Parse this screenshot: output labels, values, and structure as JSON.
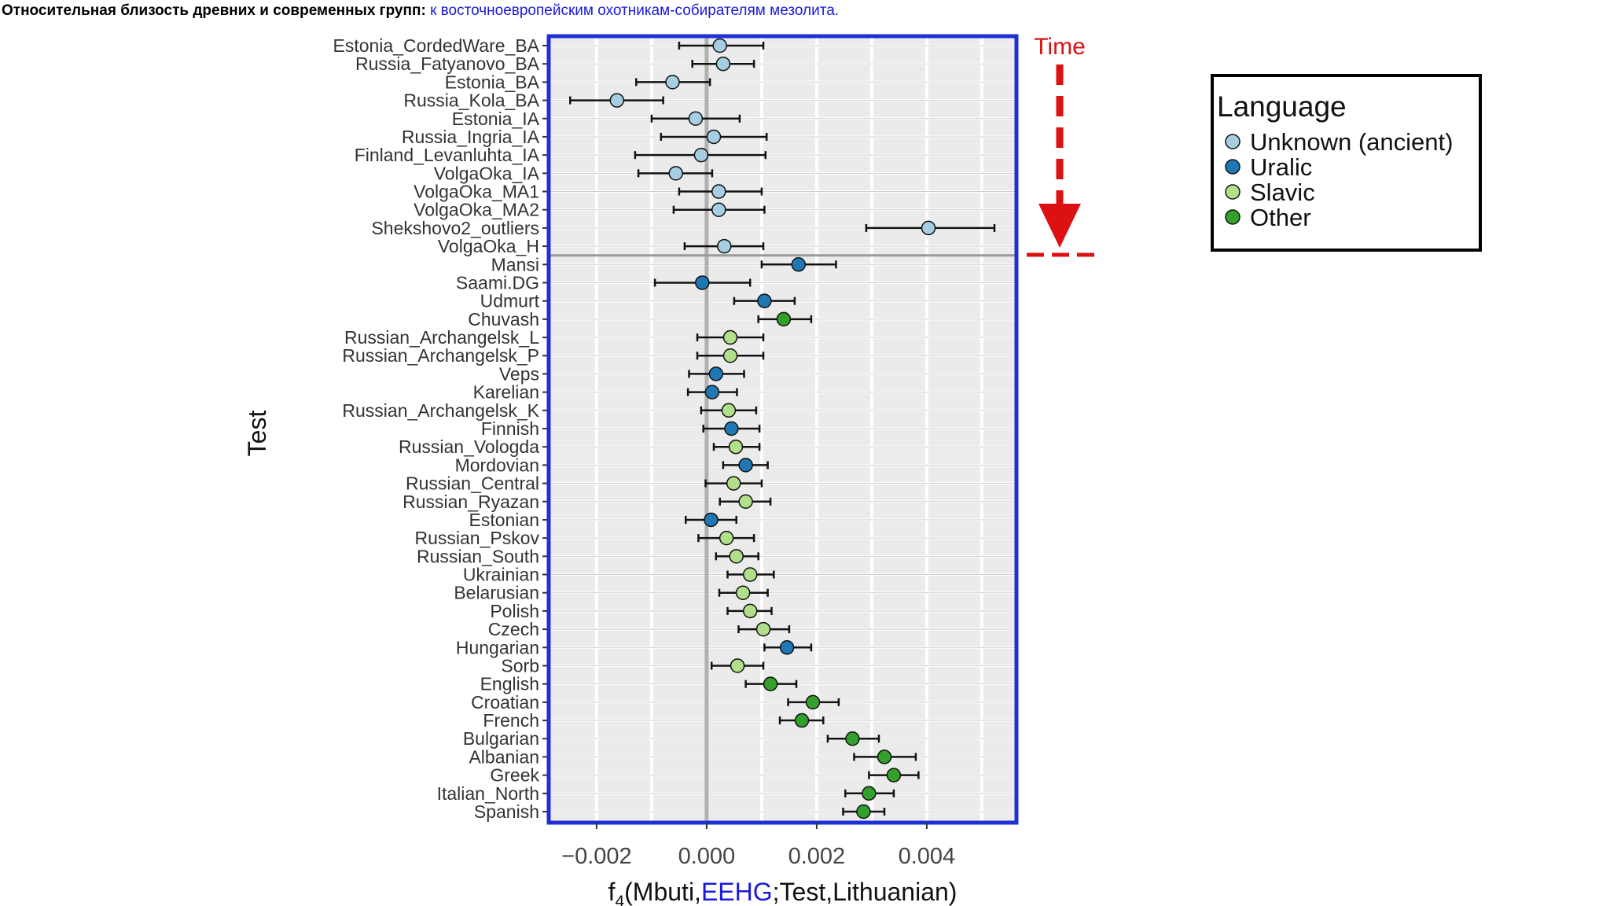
{
  "title": {
    "main": "Относительная близость древних и современных групп:",
    "sub": "к восточноевропейским охотникам-собирателям мезолита."
  },
  "time_label": "Time",
  "chart_data": {
    "type": "scatter",
    "subtype": "forest-plot-with-error-bars",
    "xlabel": {
      "prefix": "f",
      "subscript": "4",
      "part1": "(Mbuti,",
      "highlight": "EEHG",
      "part2": ";Test,Lithuanian)"
    },
    "ylabel": "Test",
    "xlim": [
      -0.00287,
      0.00563
    ],
    "xticks": [
      -0.002,
      0.0,
      0.002,
      0.004
    ],
    "xtick_labels": [
      "−0.002",
      "0.000",
      "0.002",
      "0.004"
    ],
    "grid": true,
    "legend": {
      "title": "Language",
      "placement": "right",
      "entries": [
        {
          "label": "Unknown (ancient)",
          "color": "#a6cee3"
        },
        {
          "label": "Uralic",
          "color": "#1f78b4"
        },
        {
          "label": "Slavic",
          "color": "#b2df8a"
        },
        {
          "label": "Other",
          "color": "#33a02c"
        }
      ]
    },
    "colors": {
      "frame": "#1f2ed6",
      "time": "#dd1111",
      "zero_line": "#b0b0b0"
    },
    "separator_after": "VolgaOka_H",
    "points": [
      {
        "label": "Estonia_CordedWare_BA",
        "group": "Unknown (ancient)",
        "value": 0.00024,
        "lo": -0.0005,
        "hi": 0.00103
      },
      {
        "label": "Russia_Fatyanovo_BA",
        "group": "Unknown (ancient)",
        "value": 0.0003,
        "lo": -0.00026,
        "hi": 0.00086
      },
      {
        "label": "Estonia_BA",
        "group": "Unknown (ancient)",
        "value": -0.00062,
        "lo": -0.00128,
        "hi": 6e-05
      },
      {
        "label": "Russia_Kola_BA",
        "group": "Unknown (ancient)",
        "value": -0.00163,
        "lo": -0.00248,
        "hi": -0.00079
      },
      {
        "label": "Estonia_IA",
        "group": "Unknown (ancient)",
        "value": -0.0002,
        "lo": -0.001,
        "hi": 0.0006
      },
      {
        "label": "Russia_Ingria_IA",
        "group": "Unknown (ancient)",
        "value": 0.00013,
        "lo": -0.00083,
        "hi": 0.00109
      },
      {
        "label": "Finland_Levanluhta_IA",
        "group": "Unknown (ancient)",
        "value": -0.0001,
        "lo": -0.0013,
        "hi": 0.00107
      },
      {
        "label": "VolgaOka_IA",
        "group": "Unknown (ancient)",
        "value": -0.00056,
        "lo": -0.00124,
        "hi": 0.0001
      },
      {
        "label": "VolgaOka_MA1",
        "group": "Unknown (ancient)",
        "value": 0.00022,
        "lo": -0.0005,
        "hi": 0.001
      },
      {
        "label": "VolgaOka_MA2",
        "group": "Unknown (ancient)",
        "value": 0.00022,
        "lo": -0.0006,
        "hi": 0.00105
      },
      {
        "label": "Shekshovo2_outliers",
        "group": "Unknown (ancient)",
        "value": 0.00403,
        "lo": 0.0029,
        "hi": 0.00523
      },
      {
        "label": "VolgaOka_H",
        "group": "Unknown (ancient)",
        "value": 0.00032,
        "lo": -0.0004,
        "hi": 0.00103
      },
      {
        "label": "Mansi",
        "group": "Uralic",
        "value": 0.00167,
        "lo": 0.001,
        "hi": 0.00235
      },
      {
        "label": "Saami.DG",
        "group": "Uralic",
        "value": -8e-05,
        "lo": -0.00094,
        "hi": 0.00079
      },
      {
        "label": "Udmurt",
        "group": "Uralic",
        "value": 0.00105,
        "lo": 0.0005,
        "hi": 0.0016
      },
      {
        "label": "Chuvash",
        "group": "Other",
        "value": 0.0014,
        "lo": 0.00094,
        "hi": 0.0019
      },
      {
        "label": "Russian_Archangelsk_L",
        "group": "Slavic",
        "value": 0.00043,
        "lo": -0.00017,
        "hi": 0.00103
      },
      {
        "label": "Russian_Archangelsk_P",
        "group": "Slavic",
        "value": 0.00043,
        "lo": -0.00017,
        "hi": 0.00103
      },
      {
        "label": "Veps",
        "group": "Uralic",
        "value": 0.00017,
        "lo": -0.00032,
        "hi": 0.00068
      },
      {
        "label": "Karelian",
        "group": "Uralic",
        "value": 0.0001,
        "lo": -0.00034,
        "hi": 0.00055
      },
      {
        "label": "Russian_Archangelsk_K",
        "group": "Slavic",
        "value": 0.0004,
        "lo": -0.0001,
        "hi": 0.0009
      },
      {
        "label": "Finnish",
        "group": "Uralic",
        "value": 0.00045,
        "lo": -6e-05,
        "hi": 0.00096
      },
      {
        "label": "Russian_Vologda",
        "group": "Slavic",
        "value": 0.00053,
        "lo": 0.00013,
        "hi": 0.00096
      },
      {
        "label": "Mordovian",
        "group": "Uralic",
        "value": 0.00071,
        "lo": 0.0003,
        "hi": 0.00111
      },
      {
        "label": "Russian_Central",
        "group": "Slavic",
        "value": 0.00049,
        "lo": -2e-05,
        "hi": 0.001
      },
      {
        "label": "Russian_Ryazan",
        "group": "Slavic",
        "value": 0.00071,
        "lo": 0.00024,
        "hi": 0.00116
      },
      {
        "label": "Estonian",
        "group": "Uralic",
        "value": 8e-05,
        "lo": -0.00038,
        "hi": 0.00054
      },
      {
        "label": "Russian_Pskov",
        "group": "Slavic",
        "value": 0.00036,
        "lo": -0.00015,
        "hi": 0.00086
      },
      {
        "label": "Russian_South",
        "group": "Slavic",
        "value": 0.00054,
        "lo": 0.00017,
        "hi": 0.00094
      },
      {
        "label": "Ukrainian",
        "group": "Slavic",
        "value": 0.00079,
        "lo": 0.00038,
        "hi": 0.00122
      },
      {
        "label": "Belarusian",
        "group": "Slavic",
        "value": 0.00066,
        "lo": 0.00023,
        "hi": 0.00111
      },
      {
        "label": "Polish",
        "group": "Slavic",
        "value": 0.00079,
        "lo": 0.00038,
        "hi": 0.00118
      },
      {
        "label": "Czech",
        "group": "Slavic",
        "value": 0.00103,
        "lo": 0.00058,
        "hi": 0.0015
      },
      {
        "label": "Hungarian",
        "group": "Uralic",
        "value": 0.00146,
        "lo": 0.00105,
        "hi": 0.0019
      },
      {
        "label": "Sorb",
        "group": "Slavic",
        "value": 0.00056,
        "lo": 9e-05,
        "hi": 0.00103
      },
      {
        "label": "English",
        "group": "Other",
        "value": 0.00116,
        "lo": 0.00071,
        "hi": 0.00163
      },
      {
        "label": "Croatian",
        "group": "Other",
        "value": 0.00193,
        "lo": 0.00148,
        "hi": 0.0024
      },
      {
        "label": "French",
        "group": "Other",
        "value": 0.00173,
        "lo": 0.00133,
        "hi": 0.00212
      },
      {
        "label": "Bulgarian",
        "group": "Other",
        "value": 0.00265,
        "lo": 0.0022,
        "hi": 0.00313
      },
      {
        "label": "Albanian",
        "group": "Other",
        "value": 0.00323,
        "lo": 0.00268,
        "hi": 0.0038
      },
      {
        "label": "Greek",
        "group": "Other",
        "value": 0.0034,
        "lo": 0.00295,
        "hi": 0.00385
      },
      {
        "label": "Italian_North",
        "group": "Other",
        "value": 0.00295,
        "lo": 0.00252,
        "hi": 0.0034
      },
      {
        "label": "Spanish",
        "group": "Other",
        "value": 0.00285,
        "lo": 0.00248,
        "hi": 0.00323
      }
    ]
  }
}
